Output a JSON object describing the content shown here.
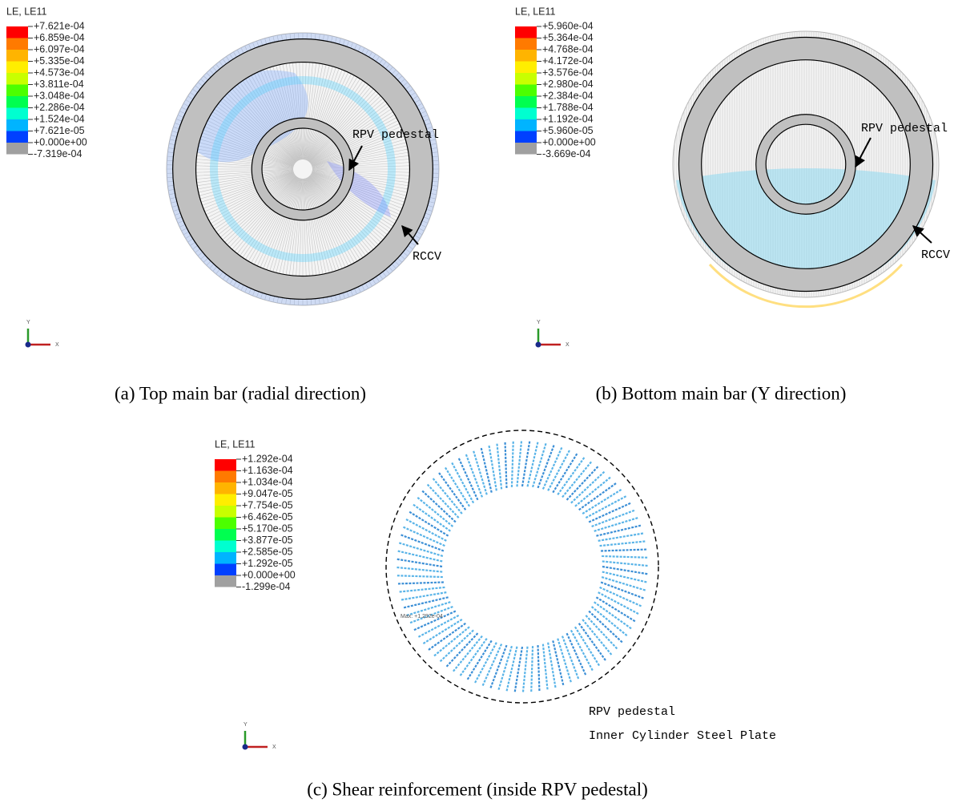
{
  "panels": [
    {
      "legend": {
        "title": "LE, LE11",
        "labels": [
          "+7.621e-04",
          "+6.859e-04",
          "+6.097e-04",
          "+5.335e-04",
          "+4.573e-04",
          "+3.811e-04",
          "+3.048e-04",
          "+2.286e-04",
          "+1.524e-04",
          "+7.621e-05",
          "+0.000e+00",
          "-7.319e-04"
        ]
      },
      "annotations": [
        "RPV pedestal",
        "RCCV"
      ],
      "triad": {
        "y": "Y",
        "x": "X"
      },
      "caption": "(a) Top main bar (radial direction)"
    },
    {
      "legend": {
        "title": "LE, LE11",
        "labels": [
          "+5.960e-04",
          "+5.364e-04",
          "+4.768e-04",
          "+4.172e-04",
          "+3.576e-04",
          "+2.980e-04",
          "+2.384e-04",
          "+1.788e-04",
          "+1.192e-04",
          "+5.960e-05",
          "+0.000e+00",
          "-3.669e-04"
        ]
      },
      "annotations": [
        "RPV pedestal",
        "RCCV"
      ],
      "triad": {
        "y": "Y",
        "x": "X"
      },
      "caption": "(b) Bottom main bar (Y direction)"
    },
    {
      "legend": {
        "title": "LE, LE11",
        "labels": [
          "+1.292e-04",
          "+1.163e-04",
          "+1.034e-04",
          "+9.047e-05",
          "+7.754e-05",
          "+6.462e-05",
          "+5.170e-05",
          "+3.877e-05",
          "+2.585e-05",
          "+1.292e-05",
          "+0.000e+00",
          "-1.299e-04"
        ]
      },
      "annotations": [
        "RPV pedestal",
        "Inner Cylinder Steel Plate"
      ],
      "max_label": "Max: +1.292e-04",
      "triad": {
        "y": "Y",
        "x": "X"
      },
      "caption": "(c) Shear reinforcement (inside RPV pedestal)"
    }
  ]
}
